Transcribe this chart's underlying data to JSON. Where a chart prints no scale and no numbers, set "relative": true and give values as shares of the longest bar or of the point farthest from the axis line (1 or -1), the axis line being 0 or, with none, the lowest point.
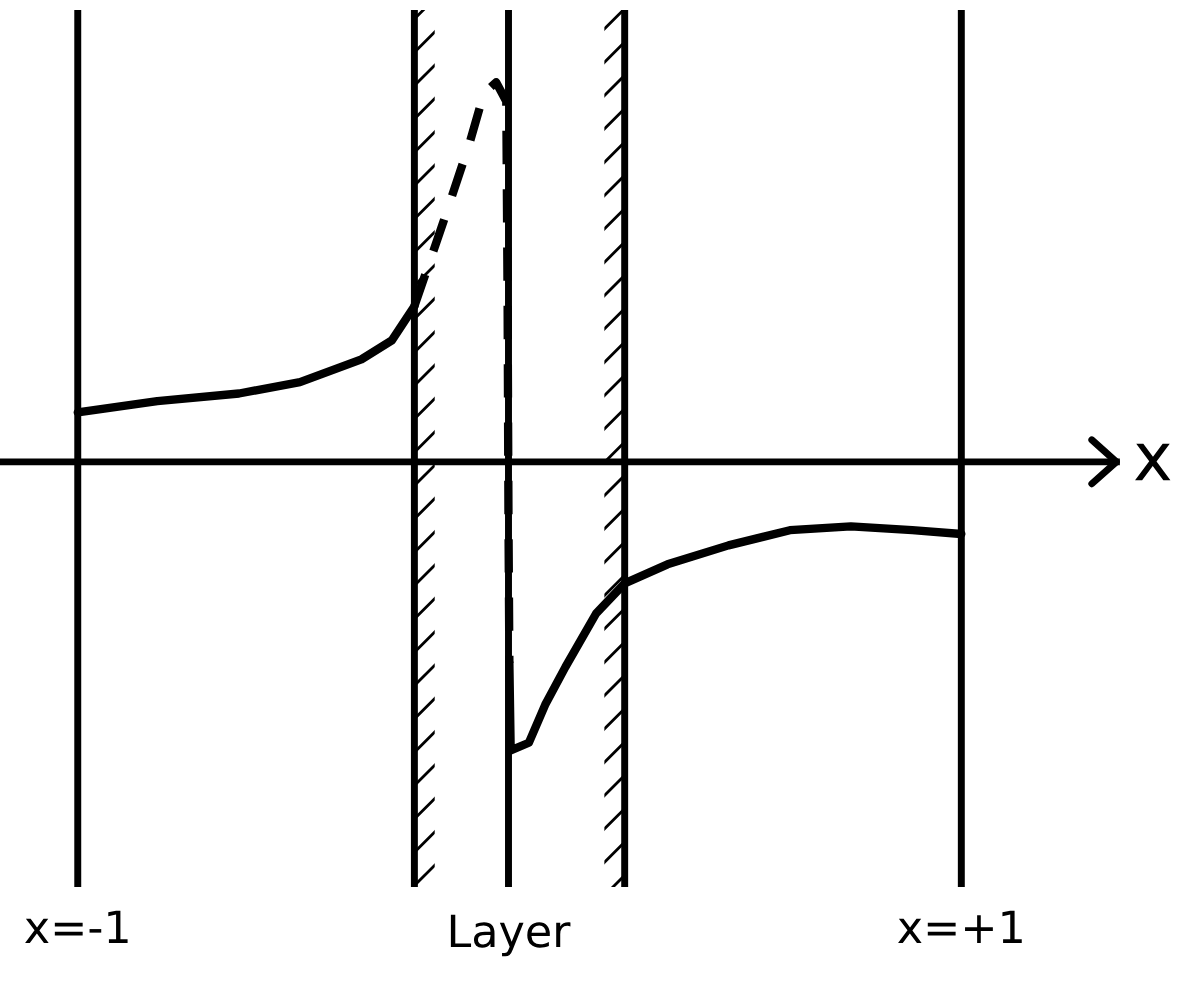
{
  "chart_data": {
    "type": "line",
    "relative": true,
    "xlabel": "x",
    "xlim": [
      -1.176,
      1.351
    ],
    "xticks": [
      {
        "value": -1,
        "label": "x=-1"
      },
      {
        "value": 1,
        "label": "x=+1"
      }
    ],
    "ref_lines": [
      {
        "axis": "x",
        "value": -1,
        "color": "#000000"
      },
      {
        "axis": "x",
        "value": -0.025,
        "label": "Layer",
        "color": "#000000"
      },
      {
        "axis": "x",
        "value": 1,
        "color": "#000000"
      }
    ],
    "bands": [
      {
        "axis": "x",
        "from": -0.238,
        "to": -0.192,
        "color": "#000000"
      },
      {
        "axis": "x",
        "from": 0.192,
        "to": 0.238,
        "color": "#000000"
      }
    ],
    "series": [
      {
        "color": "#000000",
        "line_style": "solid",
        "x": [
          -1,
          -0.82,
          -0.635,
          -0.497,
          -0.358,
          -0.289,
          -0.238
        ],
        "values": [
          0.13,
          0.16,
          0.18,
          0.21,
          0.27,
          0.32,
          0.41
        ]
      },
      {
        "color": "#000000",
        "line_style": "dashed",
        "x": [
          -0.238,
          -0.173,
          -0.113,
          -0.081,
          -0.053,
          -0.03,
          -0.027,
          -0.025,
          -0.023
        ],
        "values": [
          0.41,
          0.63,
          0.84,
          0.97,
          1.0,
          0.95,
          0.42,
          -0.16,
          -0.53
        ]
      },
      {
        "color": "#000000",
        "line_style": "solid",
        "x": [
          -0.023,
          -0.02,
          0.021,
          0.058,
          0.104,
          0.173,
          0.238,
          0.335,
          0.473,
          0.612,
          0.75,
          0.889,
          1.0
        ],
        "values": [
          -0.53,
          -0.76,
          -0.74,
          -0.64,
          -0.54,
          -0.4,
          -0.32,
          -0.27,
          -0.22,
          -0.18,
          -0.17,
          -0.18,
          -0.19
        ]
      }
    ]
  }
}
